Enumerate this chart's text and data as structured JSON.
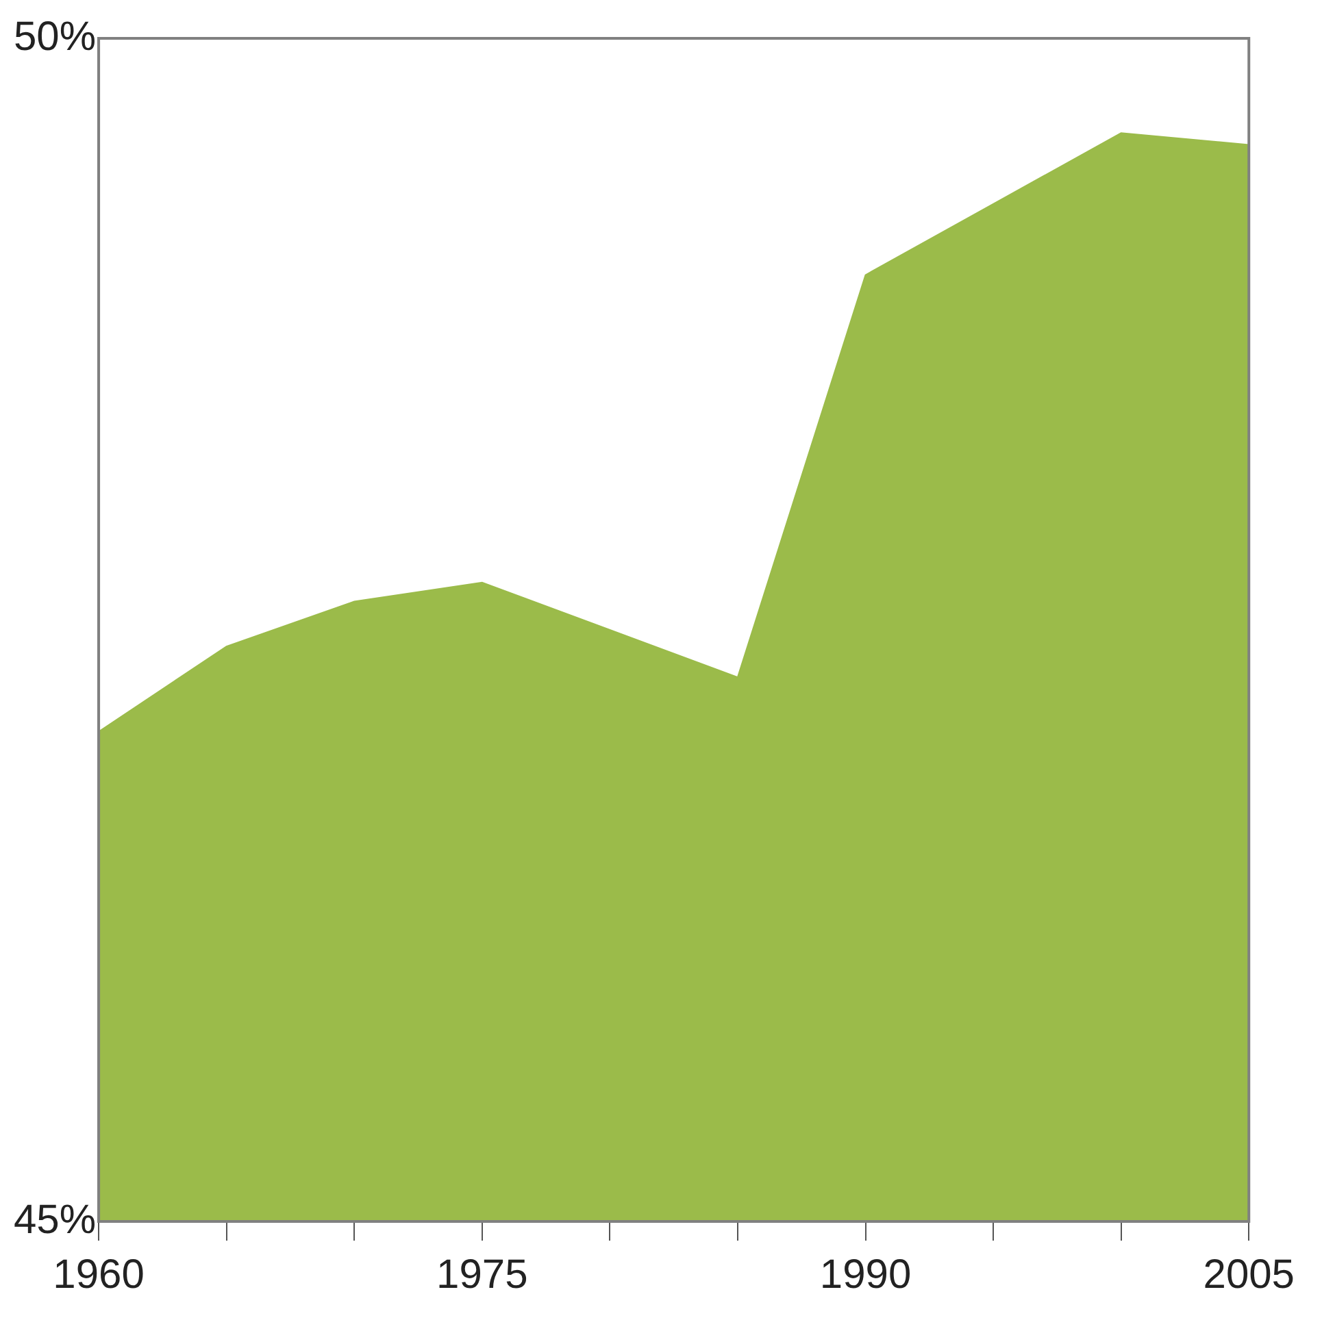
{
  "chart_data": {
    "type": "area",
    "x": [
      1960,
      1965,
      1970,
      1975,
      1980,
      1985,
      1990,
      1995,
      2000,
      2005
    ],
    "series": [
      {
        "color": "#9bbb4a",
        "values": [
          47.07,
          47.43,
          47.62,
          47.7,
          47.5,
          47.3,
          49.0,
          49.3,
          49.6,
          49.55
        ]
      }
    ],
    "xlim": [
      1960,
      2005
    ],
    "xticks": [
      1960,
      {
        "value": 1965,
        "label": null
      },
      {
        "value": 1970,
        "label": null
      },
      1975,
      {
        "value": 1980,
        "label": null
      },
      {
        "value": 1985,
        "label": null
      },
      1990,
      {
        "value": 1995,
        "label": null
      },
      {
        "value": 2000,
        "label": null
      },
      2005
    ],
    "ylim": [
      45,
      50
    ],
    "yticks": [
      {
        "value": 45,
        "label": "45%"
      },
      {
        "value": 50,
        "label": "50%"
      }
    ],
    "grid": false,
    "legend": false
  }
}
